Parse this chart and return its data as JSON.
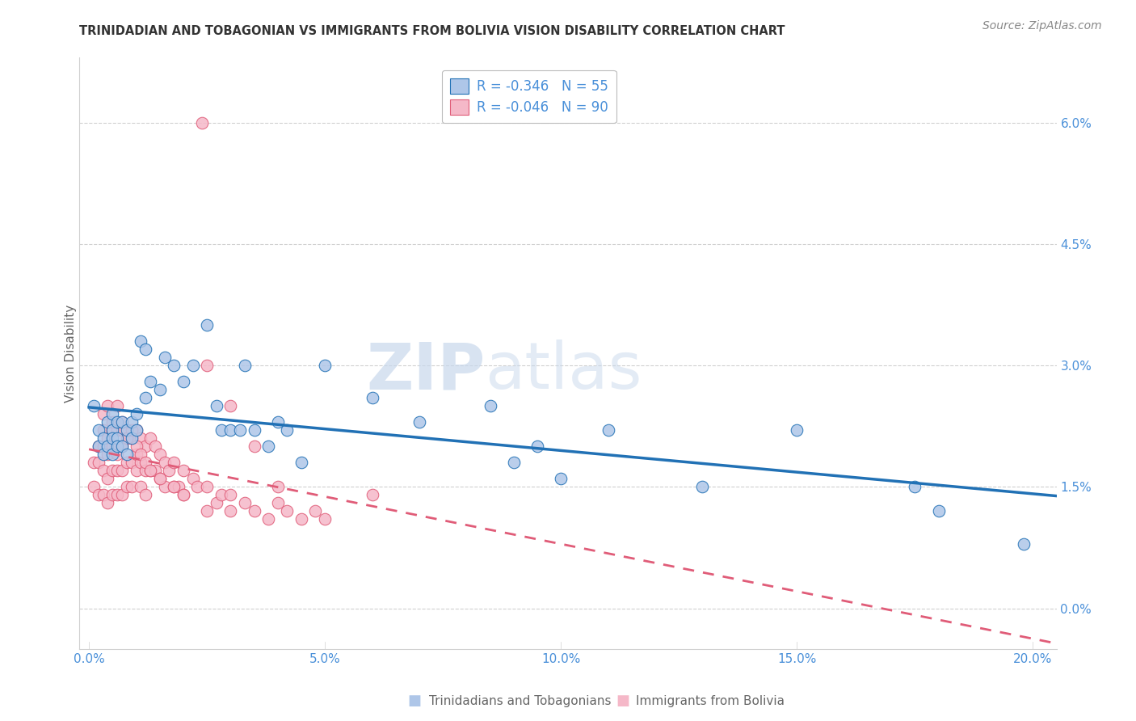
{
  "title": "TRINIDADIAN AND TOBAGONIAN VS IMMIGRANTS FROM BOLIVIA VISION DISABILITY CORRELATION CHART",
  "source": "Source: ZipAtlas.com",
  "ylabel": "Vision Disability",
  "xlim": [
    -0.002,
    0.205
  ],
  "ylim": [
    -0.005,
    0.068
  ],
  "xticks": [
    0.0,
    0.05,
    0.1,
    0.15,
    0.2
  ],
  "xtick_labels": [
    "0.0%",
    "5.0%",
    "10.0%",
    "15.0%",
    "20.0%"
  ],
  "yticks_right": [
    0.0,
    0.015,
    0.03,
    0.045,
    0.06
  ],
  "ytick_labels_right": [
    "0.0%",
    "1.5%",
    "3.0%",
    "4.5%",
    "6.0%"
  ],
  "blue_label": "Trinidadians and Tobagonians",
  "pink_label": "Immigrants from Bolivia",
  "blue_R": "-0.346",
  "blue_N": "55",
  "pink_R": "-0.046",
  "pink_N": "90",
  "blue_color": "#aec6e8",
  "pink_color": "#f5b8c8",
  "blue_line_color": "#2171b5",
  "pink_line_color": "#e05c78",
  "watermark_zip": "ZIP",
  "watermark_atlas": "atlas",
  "blue_x": [
    0.001,
    0.002,
    0.002,
    0.003,
    0.003,
    0.004,
    0.004,
    0.005,
    0.005,
    0.005,
    0.005,
    0.006,
    0.006,
    0.006,
    0.007,
    0.007,
    0.008,
    0.008,
    0.009,
    0.009,
    0.01,
    0.01,
    0.011,
    0.012,
    0.012,
    0.013,
    0.015,
    0.016,
    0.018,
    0.02,
    0.022,
    0.025,
    0.027,
    0.028,
    0.03,
    0.032,
    0.033,
    0.035,
    0.038,
    0.04,
    0.042,
    0.045,
    0.05,
    0.06,
    0.07,
    0.085,
    0.09,
    0.095,
    0.1,
    0.11,
    0.13,
    0.15,
    0.175,
    0.18,
    0.198
  ],
  "blue_y": [
    0.025,
    0.022,
    0.02,
    0.021,
    0.019,
    0.023,
    0.02,
    0.022,
    0.021,
    0.019,
    0.024,
    0.023,
    0.021,
    0.02,
    0.023,
    0.02,
    0.022,
    0.019,
    0.023,
    0.021,
    0.024,
    0.022,
    0.033,
    0.032,
    0.026,
    0.028,
    0.027,
    0.031,
    0.03,
    0.028,
    0.03,
    0.035,
    0.025,
    0.022,
    0.022,
    0.022,
    0.03,
    0.022,
    0.02,
    0.023,
    0.022,
    0.018,
    0.03,
    0.026,
    0.023,
    0.025,
    0.018,
    0.02,
    0.016,
    0.022,
    0.015,
    0.022,
    0.015,
    0.012,
    0.008
  ],
  "pink_x": [
    0.001,
    0.001,
    0.002,
    0.002,
    0.002,
    0.003,
    0.003,
    0.003,
    0.003,
    0.004,
    0.004,
    0.004,
    0.004,
    0.005,
    0.005,
    0.005,
    0.005,
    0.006,
    0.006,
    0.006,
    0.006,
    0.007,
    0.007,
    0.007,
    0.007,
    0.008,
    0.008,
    0.008,
    0.009,
    0.009,
    0.009,
    0.01,
    0.01,
    0.01,
    0.011,
    0.011,
    0.011,
    0.012,
    0.012,
    0.012,
    0.013,
    0.013,
    0.014,
    0.014,
    0.015,
    0.015,
    0.016,
    0.016,
    0.017,
    0.018,
    0.018,
    0.019,
    0.02,
    0.02,
    0.022,
    0.023,
    0.025,
    0.025,
    0.027,
    0.028,
    0.03,
    0.03,
    0.033,
    0.035,
    0.038,
    0.04,
    0.042,
    0.045,
    0.048,
    0.05,
    0.024,
    0.003,
    0.004,
    0.005,
    0.006,
    0.007,
    0.008,
    0.009,
    0.01,
    0.011,
    0.012,
    0.013,
    0.015,
    0.018,
    0.02,
    0.025,
    0.03,
    0.035,
    0.04,
    0.06
  ],
  "pink_y": [
    0.018,
    0.015,
    0.02,
    0.018,
    0.014,
    0.022,
    0.02,
    0.017,
    0.014,
    0.021,
    0.019,
    0.016,
    0.013,
    0.022,
    0.02,
    0.017,
    0.014,
    0.022,
    0.019,
    0.017,
    0.014,
    0.022,
    0.02,
    0.017,
    0.014,
    0.021,
    0.018,
    0.015,
    0.021,
    0.018,
    0.015,
    0.022,
    0.019,
    0.017,
    0.021,
    0.018,
    0.015,
    0.02,
    0.017,
    0.014,
    0.021,
    0.017,
    0.02,
    0.017,
    0.019,
    0.016,
    0.018,
    0.015,
    0.017,
    0.018,
    0.015,
    0.015,
    0.017,
    0.014,
    0.016,
    0.015,
    0.015,
    0.012,
    0.013,
    0.014,
    0.014,
    0.012,
    0.013,
    0.012,
    0.011,
    0.013,
    0.012,
    0.011,
    0.012,
    0.011,
    0.06,
    0.024,
    0.025,
    0.023,
    0.025,
    0.023,
    0.021,
    0.022,
    0.02,
    0.019,
    0.018,
    0.017,
    0.016,
    0.015,
    0.014,
    0.03,
    0.025,
    0.02,
    0.015,
    0.014
  ],
  "background_color": "#ffffff",
  "grid_color": "#d0d0d0",
  "tick_color": "#4a90d9",
  "label_color": "#666666"
}
